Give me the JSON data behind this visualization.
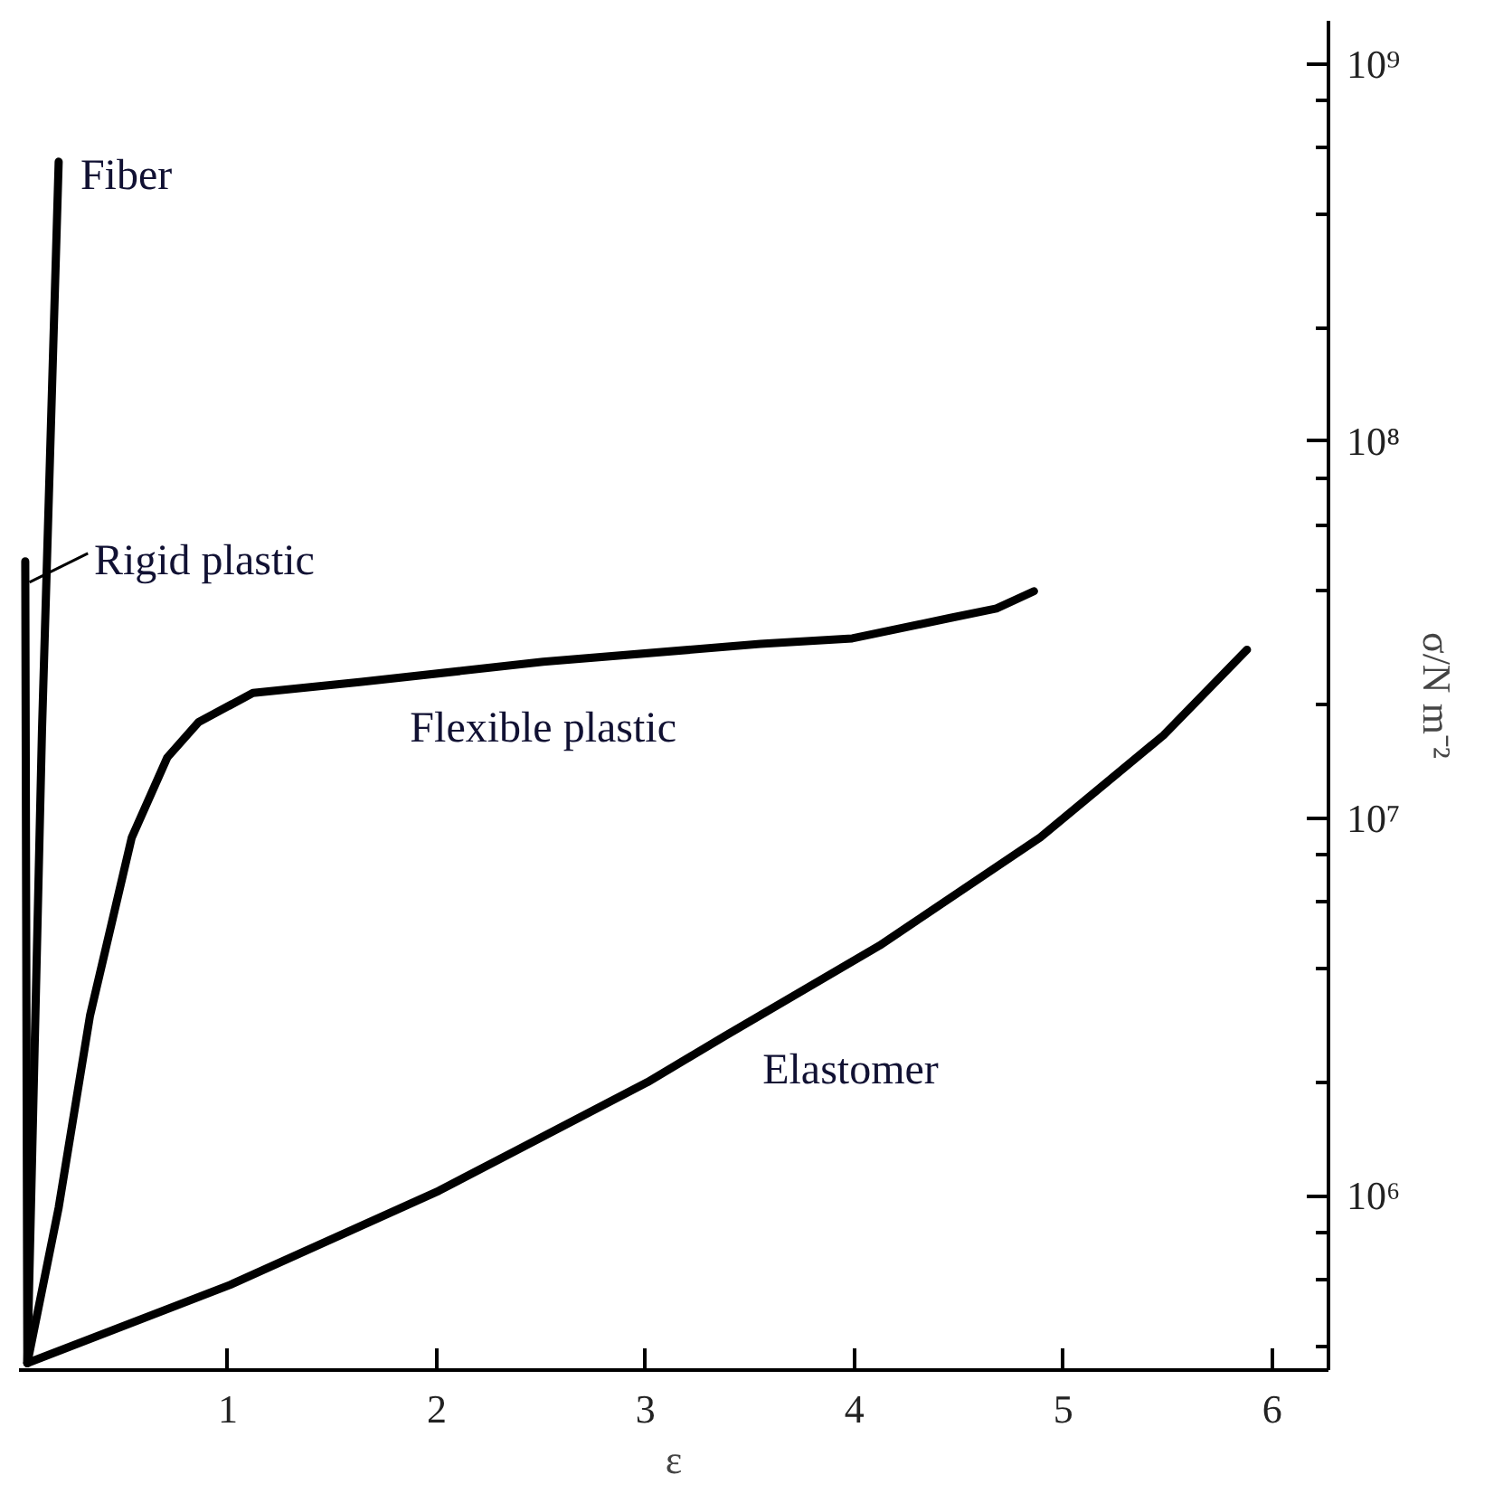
{
  "chart_data": {
    "type": "line",
    "xlabel": "ε",
    "ylabel": "σ/N m⁻²",
    "log": "y",
    "line_style": "solid",
    "xlim": [
      0,
      6.27
    ],
    "ylim": [
      345000,
      1300000000
    ],
    "xticks": [
      1,
      2,
      3,
      4,
      5,
      6
    ],
    "yticks": [
      {
        "value": 400000,
        "label": null
      },
      {
        "value": 600000,
        "label": null
      },
      {
        "value": 800000,
        "label": null
      },
      {
        "value": 1000000,
        "label": "10⁶"
      },
      {
        "value": 2000000,
        "label": null
      },
      {
        "value": 4000000,
        "label": null
      },
      {
        "value": 6000000,
        "label": null
      },
      {
        "value": 8000000,
        "label": null
      },
      {
        "value": 10000000,
        "label": "10⁷"
      },
      {
        "value": 20000000,
        "label": null
      },
      {
        "value": 40000000,
        "label": null
      },
      {
        "value": 60000000,
        "label": null
      },
      {
        "value": 80000000,
        "label": null
      },
      {
        "value": 100000000,
        "label": "10⁸"
      },
      {
        "value": 200000000,
        "label": null
      },
      {
        "value": 400000000,
        "label": null
      },
      {
        "value": 600000000,
        "label": null
      },
      {
        "value": 800000000,
        "label": null
      },
      {
        "value": 1000000000,
        "label": "10⁹"
      }
    ],
    "series": [
      {
        "name": "Fiber",
        "color": "#000000",
        "x": [
          0.04,
          0.11,
          0.19
        ],
        "values": [
          360000,
          17000000,
          550000000
        ]
      },
      {
        "name": "Rigid plastic",
        "color": "#000000",
        "x": [
          0.04,
          0.03
        ],
        "values": [
          360000,
          48000000
        ]
      },
      {
        "name": "Flexible plastic",
        "color": "#000000",
        "x": [
          0.04,
          0.19,
          0.34,
          0.54,
          0.71,
          0.86,
          1.12,
          1.64,
          2.51,
          3.55,
          3.99,
          4.46,
          4.68,
          4.86
        ],
        "values": [
          360000,
          930000,
          3000000,
          8900000,
          14500000,
          18000000,
          21500000,
          23000000,
          26000000,
          29000000,
          30000000,
          34000000,
          36000000,
          40000000
        ]
      },
      {
        "name": "Elastomer",
        "color": "#000000",
        "x": [
          0.04,
          1.01,
          2.01,
          3.01,
          3.38,
          4.12,
          4.89,
          5.48,
          5.88
        ],
        "values": [
          360000,
          580000,
          1030000,
          2000000,
          2650000,
          4600000,
          8900000,
          16600000,
          28000000
        ]
      }
    ]
  }
}
